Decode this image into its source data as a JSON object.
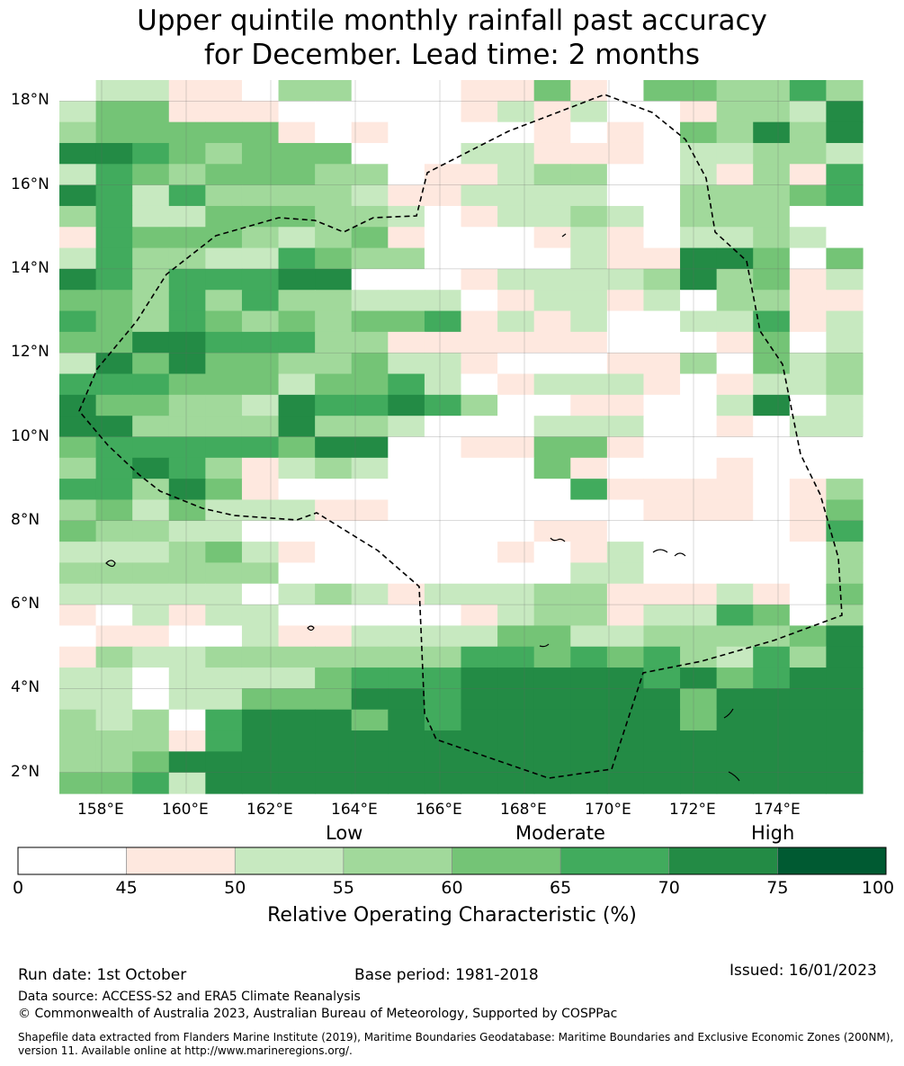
{
  "title": {
    "line1": "Upper quintile monthly rainfall past accuracy",
    "line2": "for December. Lead time: 2 months"
  },
  "map": {
    "lon_labels": [
      "158°E",
      "160°E",
      "162°E",
      "164°E",
      "166°E",
      "168°E",
      "170°E",
      "172°E",
      "174°E"
    ],
    "lat_labels": [
      "18°N",
      "16°N",
      "14°N",
      "12°N",
      "10°N",
      "8°N",
      "6°N",
      "4°N",
      "2°N"
    ],
    "lon_values": [
      158,
      160,
      162,
      164,
      166,
      168,
      170,
      172,
      174
    ],
    "lat_values": [
      18,
      16,
      14,
      12,
      10,
      8,
      6,
      4,
      2
    ],
    "lon_range": [
      157.0,
      176.0
    ],
    "lat_range": [
      1.5,
      18.5
    ],
    "grid_rows": [
      "0221103300011410443353",
      "2441110000012120013326",
      "3444441010000101043636",
      "6654344400022111022332",
      "2543444330112330021315",
      "6525333321122220033345",
      "3522444332012232033300",
      "1544432341000121022320",
      "2533225433000021166404",
      "6535556600012222363412",
      "4435353322201221203311",
      "5435434344512120022512",
      "4466555331111110001402",
      "2646443342210001130423",
      "5554442445201222101223",
      "6443326556530011002602",
      "6633336332000222001022",
      "4555554660011441000000",
      "3565312320000410001000",
      "5536410000000051111013",
      "3424222110000000111014",
      "4332200000000110000015",
      "2223421000001012000003",
      "3333330000000022000003",
      "2222202321222331112104",
      "1021220000012331225403",
      "0110021122224422333346",
      "1322333333355454532536",
      "2202222455566666564566",
      "2202244466566666646666",
      "3230566646566666646666",
      "3331566666666666666666",
      "3346666666666666666666",
      "4452666666666666666666"
    ]
  },
  "colorbar": {
    "colors": [
      "#ffffff",
      "#fee8df",
      "#c7e9c0",
      "#a1d99b",
      "#74c476",
      "#41ab5d",
      "#238b45",
      "#005a32"
    ],
    "ticks": [
      "0",
      "45",
      "50",
      "55",
      "60",
      "65",
      "70",
      "75",
      "100"
    ],
    "category_labels": [
      "Low",
      "Moderate",
      "High"
    ],
    "title": "Relative Operating Characteristic (%)"
  },
  "footer": {
    "run_date": "Run date: 1st October",
    "base_period": "Base period: 1981-2018",
    "issued": "Issued: 16/01/2023",
    "data_source": "Data source: ACCESS-S2 and ERA5 Climate Reanalysis",
    "copyright": "© Commonwealth of Australia 2023, Australian Bureau of Meteorology, Supported by COSPPac",
    "shapefile": "Shapefile data extracted from Flanders Marine Institute (2019), Maritime Boundaries Geodatabase: Maritime Boundaries and Exclusive Economic Zones (200NM), version 11. Available online at http://www.marineregions.org/."
  }
}
